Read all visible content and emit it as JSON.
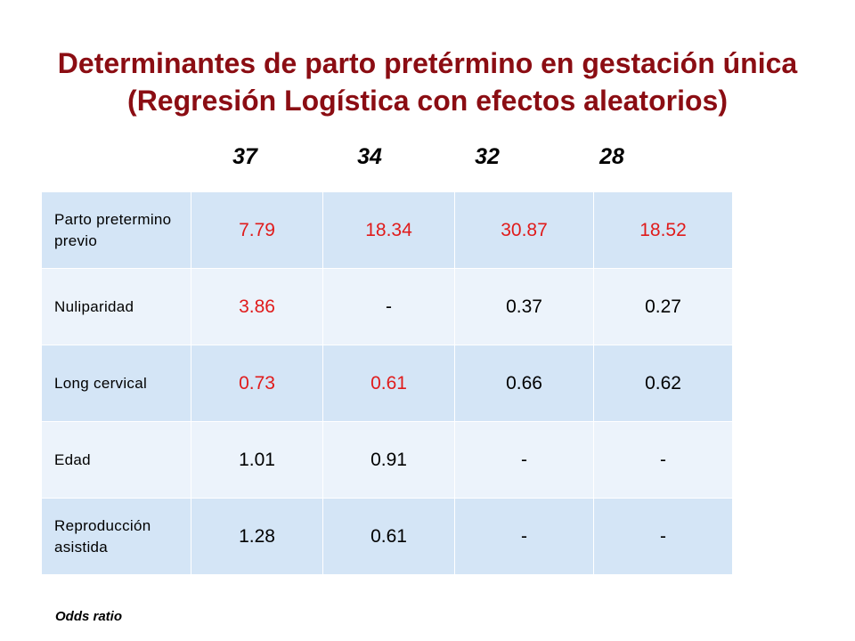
{
  "title_line1": "Determinantes de parto pretérmino en gestación única",
  "title_line2": "(Regresión Logística con efectos aleatorios)",
  "footnote": "Odds ratio",
  "colors": {
    "title": "#8b0d13",
    "highlight": "#e01b1b",
    "row_dark": "#d4e5f6",
    "row_light": "#ecf3fb"
  },
  "chart_data": {
    "type": "table",
    "columns": [
      "37",
      "34",
      "32",
      "28"
    ],
    "rows": [
      {
        "label": "Parto pretermino previo",
        "values": [
          "7.79",
          "18.34",
          "30.87",
          "18.52"
        ],
        "highlighted": [
          true,
          true,
          true,
          true
        ]
      },
      {
        "label": "Nuliparidad",
        "values": [
          "3.86",
          "-",
          "0.37",
          "0.27"
        ],
        "highlighted": [
          true,
          false,
          false,
          false
        ]
      },
      {
        "label": "Long cervical",
        "values": [
          "0.73",
          "0.61",
          "0.66",
          "0.62"
        ],
        "highlighted": [
          true,
          true,
          false,
          false
        ]
      },
      {
        "label": "Edad",
        "values": [
          "1.01",
          "0.91",
          "-",
          "-"
        ],
        "highlighted": [
          false,
          false,
          false,
          false
        ]
      },
      {
        "label": "Reproducción asistida",
        "values": [
          "1.28",
          "0.61",
          "-",
          "-"
        ],
        "highlighted": [
          false,
          false,
          false,
          false
        ]
      }
    ]
  }
}
